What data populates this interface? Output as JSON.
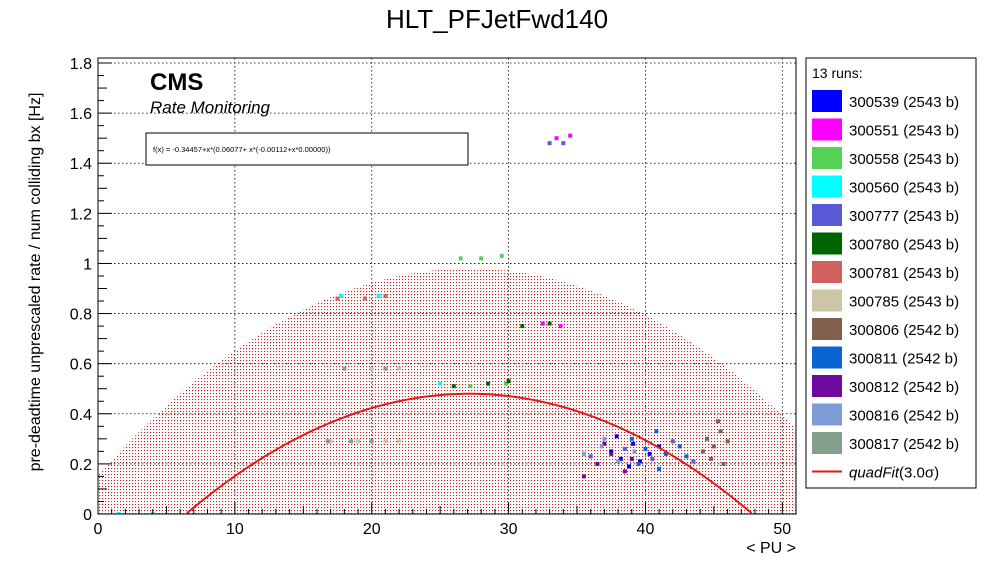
{
  "chart_data": {
    "type": "scatter",
    "title": "HLT_PFJetFwd140",
    "xlabel": "< PU >",
    "ylabel": "pre-deadtime unprescaled rate / num colliding bx [Hz]",
    "xlim": [
      0,
      51
    ],
    "ylim": [
      0,
      1.82
    ],
    "xticks": [
      0,
      10,
      20,
      30,
      40,
      50
    ],
    "yticks": [
      0,
      0.2,
      0.4,
      0.6,
      0.8,
      1,
      1.2,
      1.4,
      1.6,
      1.8
    ],
    "xtick_labels": [
      "0",
      "10",
      "20",
      "30",
      "40",
      "50"
    ],
    "ytick_labels": [
      "0",
      "0.2",
      "0.4",
      "0.6",
      "0.8",
      "1",
      "1.2",
      "1.4",
      "1.6",
      "1.8"
    ],
    "grid": true,
    "legend_position": "right",
    "cms_label": "CMS",
    "cms_sublabel": "Rate Monitoring",
    "fit_formula": "f(x) = -0.34457+x*(0.06077+ x*(-0.00112+x*0.00000))",
    "legend_header": "13 runs:",
    "fit": {
      "name": "quadFit(3.0σ)",
      "name_main": "quadFit",
      "name_suffix": "(3.0σ)",
      "coefficients": [
        -0.34457,
        0.06077,
        -0.00112
      ],
      "band_sigma": 3.0,
      "band_halfwidth": 0.5,
      "color": "#e0191b"
    },
    "series": [
      {
        "name": "300539 (2543 b)",
        "color": "#0000ff",
        "points": [
          [
            37.5,
            0.25
          ],
          [
            38.2,
            0.22
          ],
          [
            39.1,
            0.28
          ],
          [
            40.3,
            0.24
          ],
          [
            38.8,
            0.19
          ],
          [
            41.0,
            0.27
          ],
          [
            37.9,
            0.31
          ],
          [
            39.6,
            0.21
          ]
        ]
      },
      {
        "name": "300551 (2543 b)",
        "color": "#ff00ff",
        "points": [
          [
            33.5,
            1.5
          ],
          [
            34.5,
            1.51
          ],
          [
            32.5,
            0.76
          ],
          [
            33.8,
            0.75
          ]
        ]
      },
      {
        "name": "300558 (2543 b)",
        "color": "#55d255",
        "points": [
          [
            26.5,
            1.02
          ],
          [
            28.0,
            1.02
          ],
          [
            29.5,
            1.03
          ],
          [
            27.2,
            0.51
          ],
          [
            29.8,
            0.52
          ]
        ]
      },
      {
        "name": "300560 (2543 b)",
        "color": "#00ffff",
        "points": [
          [
            1.5,
            0.0
          ],
          [
            4.0,
            0.0
          ],
          [
            17.8,
            0.87
          ],
          [
            20.5,
            0.87
          ],
          [
            25.0,
            0.52
          ]
        ]
      },
      {
        "name": "300777 (2543 b)",
        "color": "#5a5ad7",
        "points": [
          [
            33.0,
            1.48
          ],
          [
            34.0,
            1.48
          ],
          [
            36.0,
            0.23
          ],
          [
            38.5,
            0.26
          ],
          [
            40.5,
            0.22
          ],
          [
            42.0,
            0.29
          ],
          [
            43.5,
            0.21
          ]
        ]
      },
      {
        "name": "300780 (2543 b)",
        "color": "#006400",
        "points": [
          [
            31.0,
            0.75
          ],
          [
            33.0,
            0.76
          ],
          [
            26.0,
            0.51
          ],
          [
            28.5,
            0.52
          ],
          [
            30.0,
            0.53
          ]
        ]
      },
      {
        "name": "300781 (2543 b)",
        "color": "#d2605f",
        "points": [
          [
            17.5,
            0.86
          ],
          [
            19.5,
            0.86
          ],
          [
            21.0,
            0.87
          ]
        ]
      },
      {
        "name": "300785 (2543 b)",
        "color": "#ccc6a6",
        "points": [
          [
            17.0,
            0.29
          ],
          [
            19.0,
            0.29
          ],
          [
            21.0,
            0.29
          ],
          [
            22.0,
            0.29
          ],
          [
            18.0,
            0.58
          ],
          [
            20.0,
            0.58
          ],
          [
            22.0,
            0.58
          ]
        ]
      },
      {
        "name": "300806 (2542 b)",
        "color": "#826050",
        "points": [
          [
            44.5,
            0.3
          ],
          [
            45.0,
            0.27
          ],
          [
            45.5,
            0.33
          ],
          [
            44.8,
            0.22
          ],
          [
            46.0,
            0.29
          ],
          [
            45.3,
            0.37
          ],
          [
            44.2,
            0.25
          ],
          [
            45.7,
            0.2
          ]
        ]
      },
      {
        "name": "300811 (2542 b)",
        "color": "#0a64d2",
        "points": [
          [
            39.0,
            0.3
          ],
          [
            40.0,
            0.26
          ],
          [
            41.5,
            0.24
          ],
          [
            42.5,
            0.27
          ],
          [
            40.8,
            0.33
          ],
          [
            39.5,
            0.2
          ],
          [
            43.0,
            0.23
          ],
          [
            41.0,
            0.18
          ]
        ]
      },
      {
        "name": "300812 (2542 b)",
        "color": "#6e0aa0",
        "points": [
          [
            36.5,
            0.2
          ],
          [
            37.5,
            0.24
          ],
          [
            38.5,
            0.17
          ],
          [
            35.5,
            0.15
          ],
          [
            37.0,
            0.28
          ],
          [
            39.0,
            0.22
          ]
        ]
      },
      {
        "name": "300816 (2542 b)",
        "color": "#7d9cd7",
        "points": [
          [
            35.5,
            0.24
          ],
          [
            37.0,
            0.3
          ],
          [
            38.0,
            0.21
          ],
          [
            36.8,
            0.27
          ],
          [
            39.2,
            0.25
          ]
        ]
      },
      {
        "name": "300817 (2542 b)",
        "color": "#82a08c",
        "points": [
          [
            16.8,
            0.29
          ],
          [
            18.5,
            0.29
          ],
          [
            20.0,
            0.29
          ],
          [
            18.0,
            0.58
          ],
          [
            21.0,
            0.58
          ]
        ]
      }
    ]
  }
}
